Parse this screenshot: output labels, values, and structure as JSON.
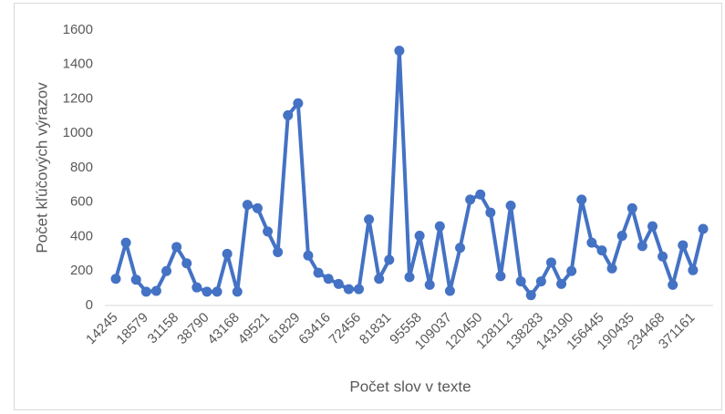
{
  "chart_data": {
    "type": "line",
    "x_label": "Počet slov v texte",
    "y_label": "Počet kľúčových výrazov",
    "categories": [
      "14245",
      null,
      null,
      "18579",
      null,
      null,
      "31158",
      null,
      null,
      "38790",
      null,
      null,
      "43168",
      null,
      null,
      "49521",
      null,
      null,
      "61829",
      null,
      null,
      "63416",
      null,
      null,
      "72456",
      null,
      null,
      "81831",
      null,
      null,
      "95558",
      null,
      null,
      "109037",
      null,
      null,
      "120450",
      null,
      null,
      "128112",
      null,
      null,
      "138283",
      null,
      null,
      "143190",
      null,
      null,
      "156445",
      null,
      null,
      "190435",
      null,
      null,
      "234468",
      null,
      null,
      "371161",
      null
    ],
    "values": [
      155,
      365,
      150,
      80,
      85,
      200,
      340,
      245,
      105,
      80,
      80,
      300,
      80,
      585,
      565,
      430,
      310,
      1105,
      1175,
      290,
      190,
      155,
      125,
      95,
      95,
      500,
      155,
      265,
      1480,
      165,
      405,
      120,
      460,
      85,
      335,
      615,
      645,
      540,
      170,
      580,
      140,
      60,
      140,
      250,
      125,
      200,
      615,
      365,
      320,
      215,
      405,
      565,
      345,
      460,
      285,
      120,
      350,
      205,
      445
    ],
    "color": "#4472c4",
    "ylim": [
      0,
      1600
    ],
    "yticks": [
      0,
      200,
      400,
      600,
      800,
      1000,
      1200,
      1400,
      1600
    ]
  }
}
